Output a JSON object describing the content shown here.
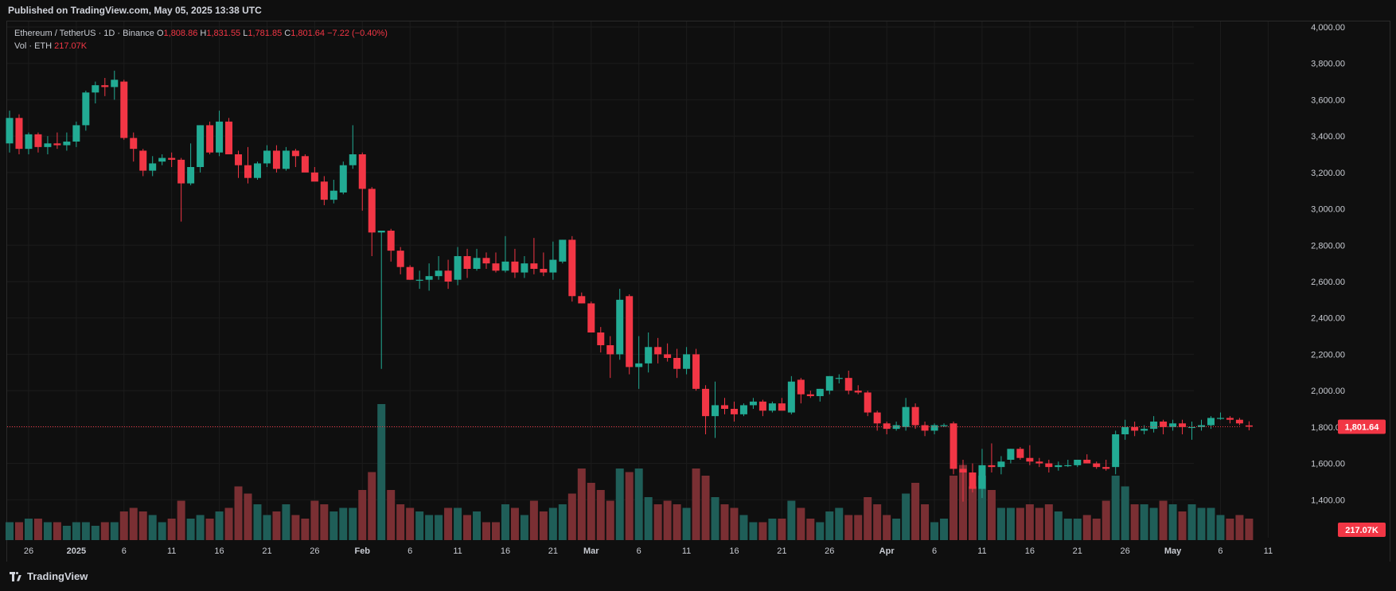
{
  "header": {
    "published": "Published on TradingView.com, May 05, 2025 13:38 UTC"
  },
  "legend": {
    "symbol": "Ethereum / TetherUS · 1D · Binance",
    "o_label": "O",
    "o_value": "1,808.86",
    "h_label": "H",
    "h_value": "1,831.55",
    "l_label": "L",
    "l_value": "1,781.85",
    "c_label": "C",
    "c_value": "1,801.64",
    "change": "−7.22 (−0.40%)",
    "vol_label": "Vol · ETH",
    "vol_value": "217.07K"
  },
  "footer": {
    "brand": "TradingView"
  },
  "colors": {
    "up": "#22ab94",
    "down": "#f23645",
    "up_vol": "#1f5e58",
    "down_vol": "#7a2f33",
    "background": "#0f0f0f",
    "grid": "#1c1c1c"
  },
  "chart_data": {
    "type": "candlestick",
    "ylim": [
      1200,
      4000
    ],
    "y_ticks": [
      "1,400.00",
      "1,600.00",
      "1,800.00",
      "2,000.00",
      "2,200.00",
      "2,400.00",
      "2,600.00",
      "2,800.00",
      "3,000.00",
      "3,200.00",
      "3,400.00",
      "3,600.00",
      "3,800.00",
      "4,000.00"
    ],
    "x_ticks": [
      "26",
      "2025",
      "6",
      "11",
      "16",
      "21",
      "26",
      "Feb",
      "6",
      "11",
      "16",
      "21",
      "Mar",
      "6",
      "11",
      "16",
      "21",
      "26",
      "Apr",
      "6",
      "11",
      "16",
      "21",
      "26",
      "May",
      "6",
      "11"
    ],
    "last_price_label": "1,801.64",
    "last_volume_label": "217.07K",
    "candles": [
      [
        3360,
        3540,
        3310,
        3500,
        5
      ],
      [
        3500,
        3520,
        3300,
        3330,
        5
      ],
      [
        3330,
        3420,
        3300,
        3410,
        6
      ],
      [
        3410,
        3420,
        3310,
        3340,
        6
      ],
      [
        3340,
        3400,
        3300,
        3360,
        5
      ],
      [
        3360,
        3420,
        3330,
        3350,
        5
      ],
      [
        3350,
        3420,
        3320,
        3370,
        4
      ],
      [
        3370,
        3480,
        3340,
        3460,
        5
      ],
      [
        3460,
        3650,
        3430,
        3640,
        5
      ],
      [
        3640,
        3700,
        3580,
        3680,
        4
      ],
      [
        3680,
        3720,
        3620,
        3670,
        5
      ],
      [
        3670,
        3760,
        3600,
        3710,
        5
      ],
      [
        3700,
        3710,
        3380,
        3390,
        8
      ],
      [
        3390,
        3420,
        3260,
        3330,
        9
      ],
      [
        3320,
        3330,
        3180,
        3210,
        8
      ],
      [
        3210,
        3290,
        3180,
        3250,
        7
      ],
      [
        3260,
        3300,
        3240,
        3280,
        5
      ],
      [
        3280,
        3310,
        3230,
        3270,
        6
      ],
      [
        3270,
        3280,
        2930,
        3140,
        11
      ],
      [
        3140,
        3360,
        3130,
        3230,
        6
      ],
      [
        3230,
        3460,
        3200,
        3460,
        7
      ],
      [
        3460,
        3480,
        3300,
        3310,
        6
      ],
      [
        3310,
        3540,
        3290,
        3480,
        8
      ],
      [
        3480,
        3500,
        3300,
        3300,
        9
      ],
      [
        3300,
        3320,
        3170,
        3240,
        15
      ],
      [
        3240,
        3340,
        3140,
        3170,
        13
      ],
      [
        3170,
        3260,
        3160,
        3250,
        10
      ],
      [
        3250,
        3350,
        3230,
        3320,
        7
      ],
      [
        3320,
        3350,
        3200,
        3220,
        8
      ],
      [
        3220,
        3340,
        3210,
        3320,
        10
      ],
      [
        3320,
        3330,
        3230,
        3290,
        7
      ],
      [
        3290,
        3300,
        3210,
        3200,
        6
      ],
      [
        3200,
        3230,
        3160,
        3150,
        11
      ],
      [
        3150,
        3180,
        3020,
        3050,
        10
      ],
      [
        3050,
        3160,
        3030,
        3100,
        8
      ],
      [
        3090,
        3260,
        3080,
        3240,
        9
      ],
      [
        3240,
        3460,
        3220,
        3300,
        9
      ],
      [
        3300,
        3310,
        2990,
        3110,
        14
      ],
      [
        3110,
        3120,
        2740,
        2870,
        19
      ],
      [
        2870,
        2880,
        2120,
        2880,
        38
      ],
      [
        2880,
        2890,
        2710,
        2770,
        14
      ],
      [
        2770,
        2790,
        2640,
        2680,
        10
      ],
      [
        2680,
        2690,
        2610,
        2610,
        9
      ],
      [
        2610,
        2660,
        2560,
        2610,
        8
      ],
      [
        2610,
        2700,
        2550,
        2630,
        7
      ],
      [
        2630,
        2740,
        2610,
        2660,
        7
      ],
      [
        2660,
        2720,
        2560,
        2600,
        9
      ],
      [
        2610,
        2790,
        2580,
        2740,
        9
      ],
      [
        2740,
        2780,
        2620,
        2670,
        7
      ],
      [
        2670,
        2780,
        2660,
        2730,
        8
      ],
      [
        2730,
        2760,
        2670,
        2700,
        5
      ],
      [
        2700,
        2760,
        2650,
        2660,
        5
      ],
      [
        2660,
        2850,
        2650,
        2710,
        10
      ],
      [
        2710,
        2780,
        2620,
        2650,
        9
      ],
      [
        2650,
        2740,
        2620,
        2700,
        7
      ],
      [
        2700,
        2840,
        2640,
        2670,
        11
      ],
      [
        2670,
        2760,
        2630,
        2650,
        8
      ],
      [
        2650,
        2820,
        2610,
        2720,
        9
      ],
      [
        2710,
        2830,
        2700,
        2830,
        10
      ],
      [
        2830,
        2850,
        2490,
        2520,
        13
      ],
      [
        2520,
        2540,
        2480,
        2480,
        20
      ],
      [
        2480,
        2490,
        2330,
        2320,
        16
      ],
      [
        2320,
        2350,
        2210,
        2250,
        14
      ],
      [
        2250,
        2300,
        2070,
        2200,
        11
      ],
      [
        2200,
        2560,
        2170,
        2500,
        20
      ],
      [
        2520,
        2530,
        2090,
        2130,
        19
      ],
      [
        2130,
        2300,
        2010,
        2150,
        20
      ],
      [
        2150,
        2320,
        2100,
        2240,
        12
      ],
      [
        2240,
        2290,
        2150,
        2200,
        10
      ],
      [
        2200,
        2260,
        2160,
        2180,
        11
      ],
      [
        2180,
        2230,
        2070,
        2120,
        10
      ],
      [
        2120,
        2240,
        2090,
        2200,
        9
      ],
      [
        2200,
        2230,
        2000,
        2010,
        20
      ],
      [
        2010,
        2030,
        1760,
        1860,
        18
      ],
      [
        1860,
        2050,
        1740,
        1920,
        12
      ],
      [
        1920,
        1960,
        1870,
        1900,
        10
      ],
      [
        1900,
        1940,
        1830,
        1870,
        9
      ],
      [
        1870,
        1930,
        1860,
        1920,
        7
      ],
      [
        1920,
        1960,
        1900,
        1940,
        5
      ],
      [
        1940,
        1950,
        1860,
        1890,
        5
      ],
      [
        1890,
        1940,
        1880,
        1930,
        6
      ],
      [
        1930,
        1960,
        1900,
        1890,
        6
      ],
      [
        1880,
        2080,
        1870,
        2050,
        11
      ],
      [
        2060,
        2070,
        1930,
        1980,
        9
      ],
      [
        1980,
        2000,
        1960,
        1970,
        6
      ],
      [
        1970,
        2010,
        1940,
        2010,
        5
      ],
      [
        2000,
        2080,
        1980,
        2080,
        8
      ],
      [
        2070,
        2090,
        2040,
        2070,
        9
      ],
      [
        2070,
        2110,
        1980,
        2000,
        7
      ],
      [
        2000,
        2030,
        1980,
        1990,
        7
      ],
      [
        1990,
        2000,
        1860,
        1880,
        12
      ],
      [
        1880,
        1890,
        1780,
        1820,
        10
      ],
      [
        1820,
        1830,
        1760,
        1790,
        7
      ],
      [
        1790,
        1830,
        1780,
        1810,
        6
      ],
      [
        1800,
        1960,
        1780,
        1910,
        13
      ],
      [
        1910,
        1930,
        1790,
        1810,
        16
      ],
      [
        1810,
        1830,
        1750,
        1780,
        10
      ],
      [
        1780,
        1820,
        1760,
        1810,
        5
      ],
      [
        1810,
        1820,
        1800,
        1810,
        6
      ],
      [
        1820,
        1830,
        1540,
        1570,
        18
      ],
      [
        1570,
        1620,
        1390,
        1550,
        21
      ],
      [
        1550,
        1600,
        1440,
        1460,
        15
      ],
      [
        1460,
        1680,
        1410,
        1590,
        18
      ],
      [
        1590,
        1710,
        1550,
        1580,
        14
      ],
      [
        1580,
        1640,
        1540,
        1610,
        9
      ],
      [
        1620,
        1680,
        1600,
        1680,
        9
      ],
      [
        1680,
        1690,
        1620,
        1630,
        9
      ],
      [
        1630,
        1700,
        1590,
        1610,
        10
      ],
      [
        1610,
        1630,
        1580,
        1600,
        9
      ],
      [
        1600,
        1620,
        1550,
        1580,
        10
      ],
      [
        1580,
        1610,
        1560,
        1590,
        8
      ],
      [
        1590,
        1620,
        1580,
        1590,
        6
      ],
      [
        1590,
        1620,
        1580,
        1620,
        6
      ],
      [
        1620,
        1650,
        1600,
        1600,
        7
      ],
      [
        1600,
        1610,
        1570,
        1580,
        6
      ],
      [
        1580,
        1620,
        1560,
        1570,
        11
      ],
      [
        1580,
        1780,
        1540,
        1760,
        18
      ],
      [
        1760,
        1840,
        1730,
        1800,
        15
      ],
      [
        1800,
        1830,
        1750,
        1780,
        10
      ],
      [
        1780,
        1810,
        1760,
        1790,
        10
      ],
      [
        1790,
        1860,
        1770,
        1830,
        9
      ],
      [
        1830,
        1840,
        1760,
        1800,
        11
      ],
      [
        1800,
        1840,
        1780,
        1820,
        10
      ],
      [
        1820,
        1840,
        1760,
        1800,
        8
      ],
      [
        1800,
        1830,
        1730,
        1800,
        10
      ],
      [
        1800,
        1840,
        1780,
        1810,
        9
      ],
      [
        1810,
        1860,
        1790,
        1850,
        9
      ],
      [
        1850,
        1880,
        1840,
        1850,
        7
      ],
      [
        1850,
        1860,
        1820,
        1840,
        6
      ],
      [
        1840,
        1850,
        1810,
        1820,
        7
      ],
      [
        1808.86,
        1831.55,
        1781.85,
        1801.64,
        6
      ]
    ]
  }
}
